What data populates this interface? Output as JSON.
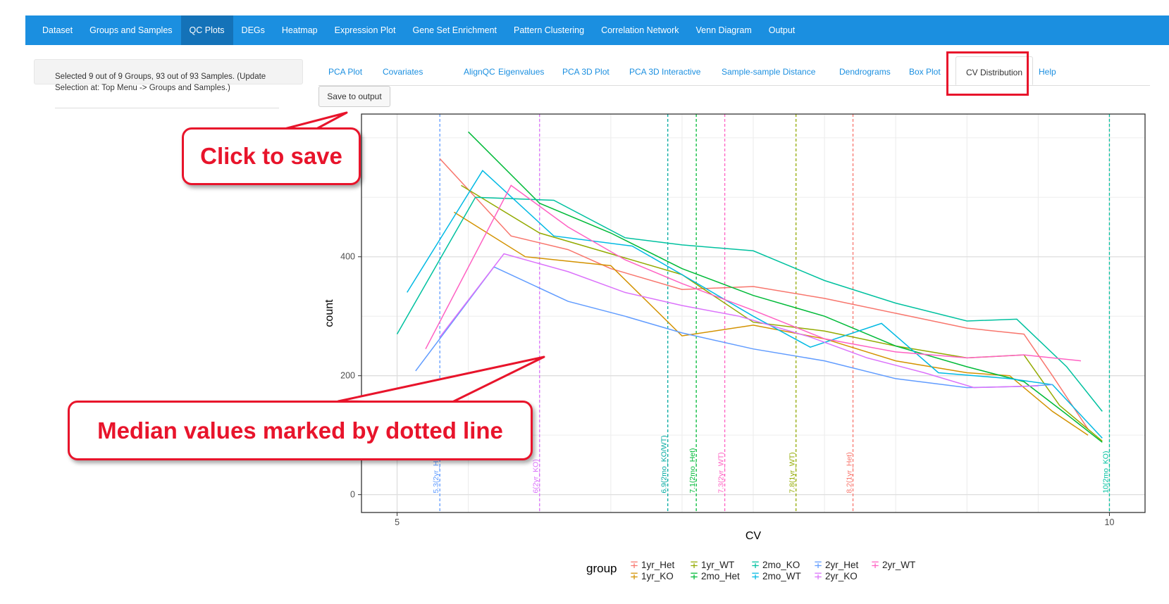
{
  "topnav": {
    "items": [
      "Dataset",
      "Groups and Samples",
      "QC Plots",
      "DEGs",
      "Heatmap",
      "Expression Plot",
      "Gene Set Enrichment",
      "Pattern Clustering",
      "Correlation Network",
      "Venn Diagram",
      "Output"
    ],
    "active": "QC Plots",
    "bg_color": "#1b8fe0"
  },
  "sidebar": {
    "selection_text": "Selected 9 out of 9 Groups, 93 out of 93 Samples. (Update Selection at: Top Menu -> Groups and Samples.)"
  },
  "subtabs": {
    "items": [
      "PCA Plot",
      "Covariates",
      "AlignQC",
      "Eigenvalues",
      "PCA 3D Plot",
      "PCA 3D Interactive",
      "Sample-sample Distance",
      "Dendrograms",
      "Box Plot",
      "CV Distribution",
      "Help"
    ],
    "active": "CV Distribution"
  },
  "save_button": "Save to output",
  "callouts": {
    "save": "Click to save",
    "median": "Median values marked by dotted line"
  },
  "annotation_color": "#e8142b",
  "chart_data": {
    "type": "line",
    "xlabel": "CV",
    "ylabel": "count",
    "xlim": [
      4.75,
      10.25
    ],
    "ylim": [
      -30,
      640
    ],
    "xticks": [
      5,
      10
    ],
    "yticks": [
      0,
      200,
      400
    ],
    "grid": true,
    "legend_title": "group",
    "legend_position": "bottom",
    "series": [
      {
        "name": "1yr_Het",
        "color": "#F8766D",
        "points": [
          [
            5.3,
            565
          ],
          [
            5.8,
            435
          ],
          [
            6.2,
            412
          ],
          [
            6.5,
            380
          ],
          [
            7.0,
            345
          ],
          [
            7.5,
            350
          ],
          [
            8.0,
            330
          ],
          [
            8.5,
            305
          ],
          [
            9.0,
            280
          ],
          [
            9.4,
            270
          ],
          [
            9.6,
            200
          ],
          [
            9.85,
            110
          ]
        ]
      },
      {
        "name": "1yr_KO",
        "color": "#D39200",
        "points": [
          [
            5.4,
            475
          ],
          [
            5.9,
            400
          ],
          [
            6.5,
            385
          ],
          [
            7.0,
            267
          ],
          [
            7.5,
            285
          ],
          [
            8.0,
            262
          ],
          [
            8.5,
            225
          ],
          [
            9.0,
            205
          ],
          [
            9.3,
            200
          ],
          [
            9.6,
            140
          ],
          [
            9.85,
            100
          ]
        ]
      },
      {
        "name": "1yr_WT",
        "color": "#93AA00",
        "points": [
          [
            5.45,
            520
          ],
          [
            6.0,
            440
          ],
          [
            6.5,
            405
          ],
          [
            7.0,
            370
          ],
          [
            7.5,
            290
          ],
          [
            8.0,
            275
          ],
          [
            8.5,
            250
          ],
          [
            9.0,
            230
          ],
          [
            9.4,
            235
          ],
          [
            9.65,
            150
          ],
          [
            9.95,
            90
          ]
        ]
      },
      {
        "name": "2mo_Het",
        "color": "#00BA38",
        "points": [
          [
            5.5,
            610
          ],
          [
            6.0,
            490
          ],
          [
            6.5,
            440
          ],
          [
            7.0,
            380
          ],
          [
            7.5,
            335
          ],
          [
            8.0,
            300
          ],
          [
            8.5,
            250
          ],
          [
            9.0,
            215
          ],
          [
            9.4,
            190
          ],
          [
            9.7,
            135
          ],
          [
            9.95,
            88
          ]
        ]
      },
      {
        "name": "2mo_KO",
        "color": "#00C19F",
        "points": [
          [
            5.0,
            270
          ],
          [
            5.55,
            500
          ],
          [
            6.1,
            495
          ],
          [
            6.6,
            432
          ],
          [
            7.0,
            420
          ],
          [
            7.5,
            410
          ],
          [
            8.0,
            360
          ],
          [
            8.5,
            322
          ],
          [
            9.0,
            292
          ],
          [
            9.35,
            295
          ],
          [
            9.7,
            215
          ],
          [
            9.95,
            140
          ]
        ]
      },
      {
        "name": "2mo_WT",
        "color": "#00B9E3",
        "points": [
          [
            5.07,
            340
          ],
          [
            5.6,
            545
          ],
          [
            6.1,
            435
          ],
          [
            6.65,
            418
          ],
          [
            7.0,
            370
          ],
          [
            7.5,
            300
          ],
          [
            7.9,
            248
          ],
          [
            8.4,
            288
          ],
          [
            8.8,
            205
          ],
          [
            9.3,
            195
          ],
          [
            9.6,
            185
          ],
          [
            9.95,
            95
          ]
        ]
      },
      {
        "name": "2yr_Het",
        "color": "#619CFF",
        "points": [
          [
            5.13,
            208
          ],
          [
            5.68,
            383
          ],
          [
            6.2,
            325
          ],
          [
            6.6,
            300
          ],
          [
            7.0,
            272
          ],
          [
            7.5,
            245
          ],
          [
            8.0,
            225
          ],
          [
            8.5,
            195
          ],
          [
            9.0,
            180
          ],
          [
            9.4,
            182
          ],
          [
            9.6,
            185
          ]
        ]
      },
      {
        "name": "2yr_KO",
        "color": "#DB72FB",
        "points": [
          [
            5.3,
            265
          ],
          [
            5.75,
            405
          ],
          [
            6.2,
            375
          ],
          [
            6.6,
            340
          ],
          [
            7.0,
            318
          ],
          [
            7.4,
            300
          ],
          [
            7.9,
            265
          ],
          [
            8.3,
            230
          ],
          [
            8.7,
            205
          ],
          [
            9.05,
            180
          ],
          [
            9.5,
            183
          ]
        ]
      },
      {
        "name": "2yr_WT",
        "color": "#FF61C3",
        "points": [
          [
            5.2,
            245
          ],
          [
            5.8,
            520
          ],
          [
            6.2,
            450
          ],
          [
            6.6,
            395
          ],
          [
            7.0,
            355
          ],
          [
            7.5,
            310
          ],
          [
            8.0,
            262
          ],
          [
            8.5,
            240
          ],
          [
            9.0,
            230
          ],
          [
            9.4,
            235
          ],
          [
            9.8,
            225
          ]
        ]
      }
    ],
    "medians": [
      {
        "value": 5.3,
        "label": "5.3(2yr_Het)",
        "color": "#619CFF"
      },
      {
        "value": 6.0,
        "label": "6(2yr_KO)",
        "color": "#DB72FB"
      },
      {
        "value": 6.9,
        "label": "6.9(2mo_KO/WT)",
        "color": "#00A9A0"
      },
      {
        "value": 7.1,
        "label": "7.1(2mo_Het)",
        "color": "#00BA38"
      },
      {
        "value": 7.3,
        "label": "7.3(2yr_WT)",
        "color": "#FF61C3"
      },
      {
        "value": 7.8,
        "label": "7.8(1yr_WT)",
        "color": "#93AA00"
      },
      {
        "value": 8.2,
        "label": "8.2(1yr_Het)",
        "color": "#F8766D"
      },
      {
        "value": 10.0,
        "label": "10(2mo_KO)",
        "color": "#00C19F"
      }
    ]
  }
}
